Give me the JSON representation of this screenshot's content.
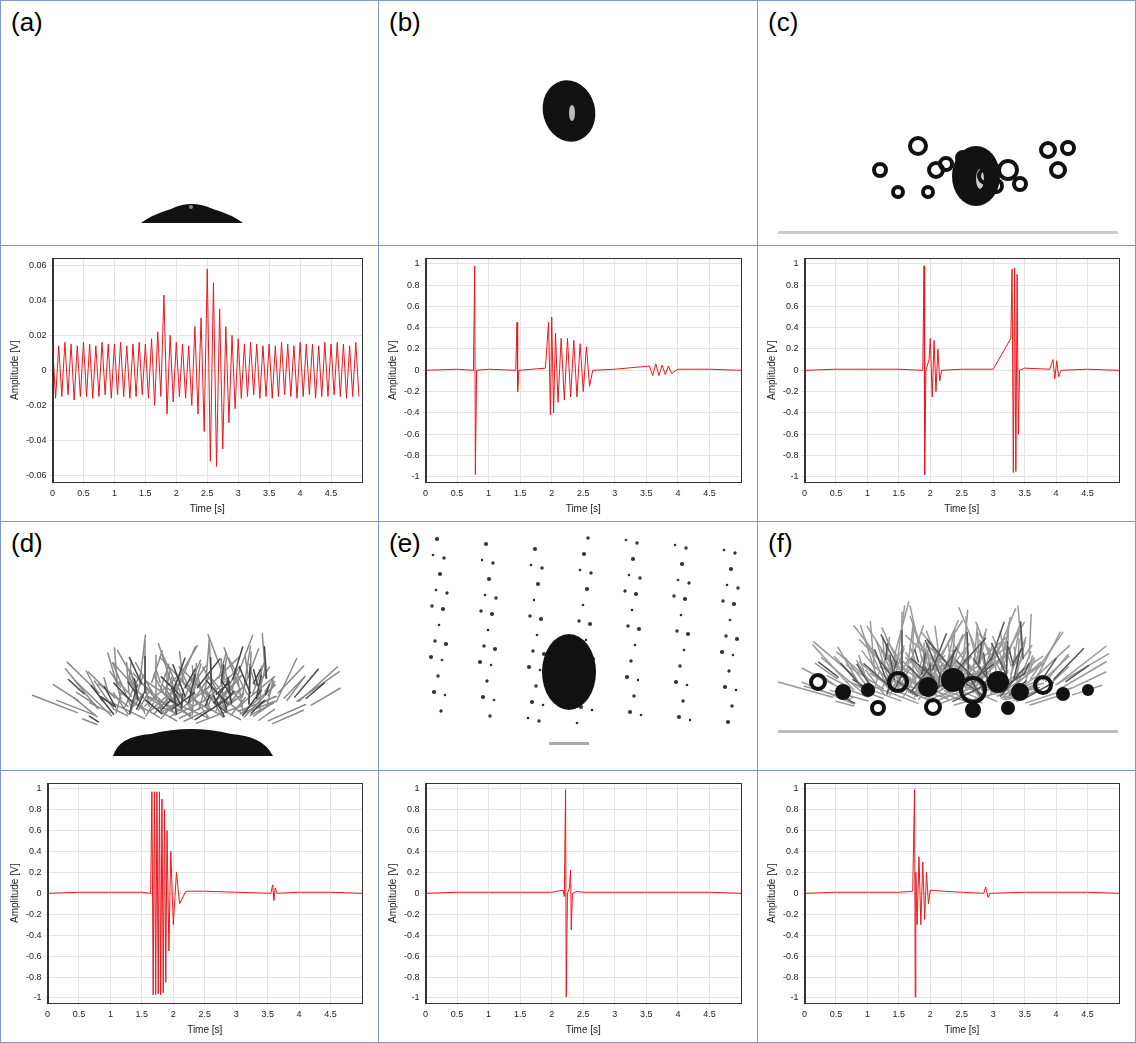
{
  "chart_data": [
    {
      "type": "line",
      "title": "(a)",
      "x_label": "Time [s]",
      "y_label": "Amplitude [V]",
      "color": "#e8191e",
      "grid": true,
      "xlim": [
        0,
        5
      ],
      "xticks": [
        0,
        0.5,
        1,
        1.5,
        2,
        2.5,
        3,
        3.5,
        4,
        4.5
      ],
      "ylim": [
        -0.064,
        0.064
      ],
      "yticks": [
        -0.06,
        -0.04,
        -0.02,
        0,
        0.02,
        0.04,
        0.06
      ],
      "x": [
        0,
        0.05,
        0.1,
        0.15,
        0.2,
        0.25,
        0.3,
        0.35,
        0.4,
        0.45,
        0.5,
        0.55,
        0.6,
        0.65,
        0.7,
        0.75,
        0.8,
        0.85,
        0.9,
        0.95,
        1,
        1.05,
        1.1,
        1.15,
        1.2,
        1.25,
        1.3,
        1.35,
        1.4,
        1.45,
        1.5,
        1.55,
        1.6,
        1.65,
        1.7,
        1.75,
        1.8,
        1.85,
        1.9,
        1.95,
        2,
        2.05,
        2.1,
        2.15,
        2.2,
        2.25,
        2.3,
        2.35,
        2.4,
        2.45,
        2.5,
        2.55,
        2.6,
        2.65,
        2.7,
        2.75,
        2.8,
        2.85,
        2.9,
        2.95,
        3,
        3.05,
        3.1,
        3.15,
        3.2,
        3.25,
        3.3,
        3.35,
        3.4,
        3.45,
        3.5,
        3.55,
        3.6,
        3.65,
        3.7,
        3.75,
        3.8,
        3.85,
        3.9,
        3.95,
        4,
        4.05,
        4.1,
        4.15,
        4.2,
        4.25,
        4.3,
        4.35,
        4.4,
        4.45,
        4.5,
        4.55,
        4.6,
        4.65,
        4.7,
        4.75,
        4.8,
        4.85,
        4.9,
        4.95
      ],
      "values": [
        0.015,
        -0.016,
        0.014,
        -0.015,
        0.016,
        -0.014,
        0.015,
        -0.017,
        0.014,
        -0.015,
        0.016,
        -0.015,
        0.015,
        -0.016,
        0.014,
        -0.015,
        0.016,
        -0.014,
        0.015,
        -0.016,
        0.015,
        -0.014,
        0.016,
        -0.015,
        0.014,
        -0.016,
        0.015,
        -0.015,
        0.016,
        -0.014,
        0.015,
        -0.016,
        0.018,
        -0.02,
        0.022,
        -0.015,
        0.043,
        -0.025,
        0.02,
        -0.018,
        0.016,
        -0.015,
        0.015,
        -0.016,
        0.014,
        -0.02,
        0.025,
        -0.025,
        0.03,
        -0.035,
        0.058,
        -0.052,
        0.05,
        -0.055,
        0.035,
        -0.045,
        0.025,
        -0.03,
        0.02,
        -0.022,
        0.018,
        -0.016,
        0.015,
        -0.015,
        0.016,
        -0.014,
        0.015,
        -0.016,
        0.014,
        -0.015,
        0.015,
        -0.016,
        0.014,
        -0.015,
        0.016,
        -0.014,
        0.015,
        -0.015,
        0.014,
        -0.016,
        0.016,
        -0.015,
        0.015,
        -0.014,
        0.015,
        -0.016,
        0.014,
        -0.015,
        0.016,
        -0.015,
        0.015,
        -0.014,
        0.016,
        -0.015,
        0.015,
        -0.016,
        0.014,
        -0.015,
        0.016,
        -0.015
      ]
    },
    {
      "type": "line",
      "title": "(b)",
      "x_label": "Time [s]",
      "y_label": "Amplitude [V]",
      "color": "#e8191e",
      "grid": true,
      "xlim": [
        0,
        5
      ],
      "xticks": [
        0,
        0.5,
        1,
        1.5,
        2,
        2.5,
        3,
        3.5,
        4,
        4.5
      ],
      "ylim": [
        -1.05,
        1.05
      ],
      "yticks": [
        -1,
        -0.8,
        -0.6,
        -0.4,
        -0.2,
        0,
        0.2,
        0.4,
        0.6,
        0.8,
        1
      ],
      "x": [
        0,
        0.5,
        0.76,
        0.78,
        0.79,
        0.81,
        1,
        1.43,
        1.45,
        1.46,
        1.48,
        1.9,
        1.95,
        1.98,
        2,
        2.03,
        2.06,
        2.1,
        2.15,
        2.2,
        2.25,
        2.3,
        2.35,
        2.4,
        2.45,
        2.5,
        2.55,
        2.6,
        2.65,
        3,
        3.55,
        3.6,
        3.65,
        3.7,
        3.75,
        3.8,
        3.85,
        3.9,
        4,
        4.5,
        5
      ],
      "values": [
        0,
        0.01,
        0,
        0.98,
        -0.98,
        0,
        0.01,
        0,
        0.45,
        -0.2,
        0,
        0.02,
        0.45,
        -0.42,
        0.5,
        -0.4,
        0.35,
        -0.3,
        0.3,
        -0.28,
        0.3,
        -0.25,
        0.28,
        -0.25,
        0.25,
        -0.2,
        0.22,
        -0.15,
        0,
        0.01,
        0.04,
        -0.05,
        0.06,
        -0.05,
        0.05,
        -0.04,
        0.04,
        -0.03,
        0.01,
        0.01,
        0
      ]
    },
    {
      "type": "line",
      "title": "(c)",
      "x_label": "Time [s]",
      "y_label": "Amplitude [V]",
      "color": "#e8191e",
      "grid": true,
      "xlim": [
        0,
        5
      ],
      "xticks": [
        0,
        0.5,
        1,
        1.5,
        2,
        2.5,
        3,
        3.5,
        4,
        4.5
      ],
      "ylim": [
        -1.05,
        1.05
      ],
      "yticks": [
        -1,
        -0.8,
        -0.6,
        -0.4,
        -0.2,
        0,
        0.2,
        0.4,
        0.6,
        0.8,
        1
      ],
      "x": [
        0,
        0.5,
        1,
        1.5,
        1.88,
        1.9,
        1.91,
        1.93,
        1.98,
        2,
        2.03,
        2.06,
        2.09,
        2.12,
        2.15,
        2.18,
        2.5,
        3,
        3.28,
        3.3,
        3.32,
        3.34,
        3.36,
        3.38,
        3.4,
        3.42,
        3.5,
        3.9,
        3.95,
        3.98,
        4.01,
        4.04,
        4.08,
        4.5,
        5
      ],
      "values": [
        0,
        0.01,
        0.01,
        0.01,
        0,
        0.98,
        -0.98,
        0,
        0.1,
        0.3,
        -0.25,
        0.28,
        -0.2,
        0.2,
        -0.1,
        0,
        0.01,
        0.01,
        0.3,
        0.95,
        -0.96,
        0.96,
        -0.95,
        0.9,
        -0.6,
        0,
        0.02,
        0.01,
        0.1,
        -0.08,
        0.09,
        -0.06,
        0,
        0.01,
        0
      ]
    },
    {
      "type": "line",
      "title": "(d)",
      "x_label": "Time [s]",
      "y_label": "Amplitude [V]",
      "color": "#e8191e",
      "grid": true,
      "xlim": [
        0,
        5
      ],
      "xticks": [
        0,
        0.5,
        1,
        1.5,
        2,
        2.5,
        3,
        3.5,
        4,
        4.5
      ],
      "ylim": [
        -1.05,
        1.05
      ],
      "yticks": [
        -1,
        -0.8,
        -0.6,
        -0.4,
        -0.2,
        0,
        0.2,
        0.4,
        0.6,
        0.8,
        1
      ],
      "x": [
        0,
        0.5,
        1,
        1.5,
        1.64,
        1.66,
        1.68,
        1.7,
        1.72,
        1.74,
        1.76,
        1.78,
        1.8,
        1.82,
        1.84,
        1.86,
        1.88,
        1.9,
        1.93,
        1.96,
        2,
        2.05,
        2.1,
        2.2,
        2.5,
        3,
        3.55,
        3.58,
        3.6,
        3.62,
        3.65,
        4,
        4.5,
        5
      ],
      "values": [
        0,
        0.01,
        0.01,
        0.01,
        0,
        0.97,
        -0.97,
        0.97,
        -0.97,
        0.97,
        -0.96,
        0.97,
        -0.97,
        0.9,
        -0.95,
        0.8,
        -0.85,
        0.6,
        -0.55,
        0.4,
        -0.3,
        0.2,
        -0.1,
        0.02,
        0.02,
        0.01,
        0,
        0.08,
        -0.07,
        0.05,
        0,
        0.01,
        0.01,
        0
      ]
    },
    {
      "type": "line",
      "title": "(e)",
      "x_label": "Time [s]",
      "y_label": "Amplitude [V]",
      "color": "#e8191e",
      "grid": true,
      "xlim": [
        0,
        5
      ],
      "xticks": [
        0,
        0.5,
        1,
        1.5,
        2,
        2.5,
        3,
        3.5,
        4,
        4.5
      ],
      "ylim": [
        -1.05,
        1.05
      ],
      "yticks": [
        -1,
        -0.8,
        -0.6,
        -0.4,
        -0.2,
        0,
        0.2,
        0.4,
        0.6,
        0.8,
        1
      ],
      "x": [
        0,
        0.5,
        1,
        1.5,
        2,
        2.18,
        2.2,
        2.22,
        2.23,
        2.25,
        2.28,
        2.3,
        2.31,
        2.33,
        2.4,
        2.5,
        3,
        3.5,
        4,
        4.5,
        5
      ],
      "values": [
        0,
        0.01,
        0.01,
        0.01,
        0.01,
        0.03,
        -0.03,
        0.99,
        -0.99,
        0,
        0.05,
        0.22,
        -0.35,
        0,
        0.02,
        0.01,
        0.01,
        0.01,
        0.01,
        0.01,
        0
      ]
    },
    {
      "type": "line",
      "title": "(f)",
      "x_label": "Time [s]",
      "y_label": "Amplitude [V]",
      "color": "#e8191e",
      "grid": true,
      "xlim": [
        0,
        5
      ],
      "xticks": [
        0,
        0.5,
        1,
        1.5,
        2,
        2.5,
        3,
        3.5,
        4,
        4.5
      ],
      "ylim": [
        -1.05,
        1.05
      ],
      "yticks": [
        -1,
        -0.8,
        -0.6,
        -0.4,
        -0.2,
        0,
        0.2,
        0.4,
        0.6,
        0.8,
        1
      ],
      "x": [
        0,
        0.5,
        1,
        1.5,
        1.72,
        1.75,
        1.76,
        1.77,
        1.79,
        1.82,
        1.85,
        1.88,
        1.91,
        1.94,
        1.97,
        2,
        2.2,
        2.5,
        2.85,
        2.88,
        2.92,
        2.95,
        3.5,
        4,
        4.5,
        5
      ],
      "values": [
        0,
        0.01,
        0.01,
        0.01,
        0.02,
        0.99,
        -0.99,
        0.2,
        -0.3,
        0.35,
        -0.3,
        0.3,
        -0.25,
        0.2,
        -0.1,
        0.03,
        0.02,
        0.01,
        0,
        0.06,
        -0.04,
        0,
        0.01,
        0.01,
        0.01,
        0
      ]
    }
  ]
}
